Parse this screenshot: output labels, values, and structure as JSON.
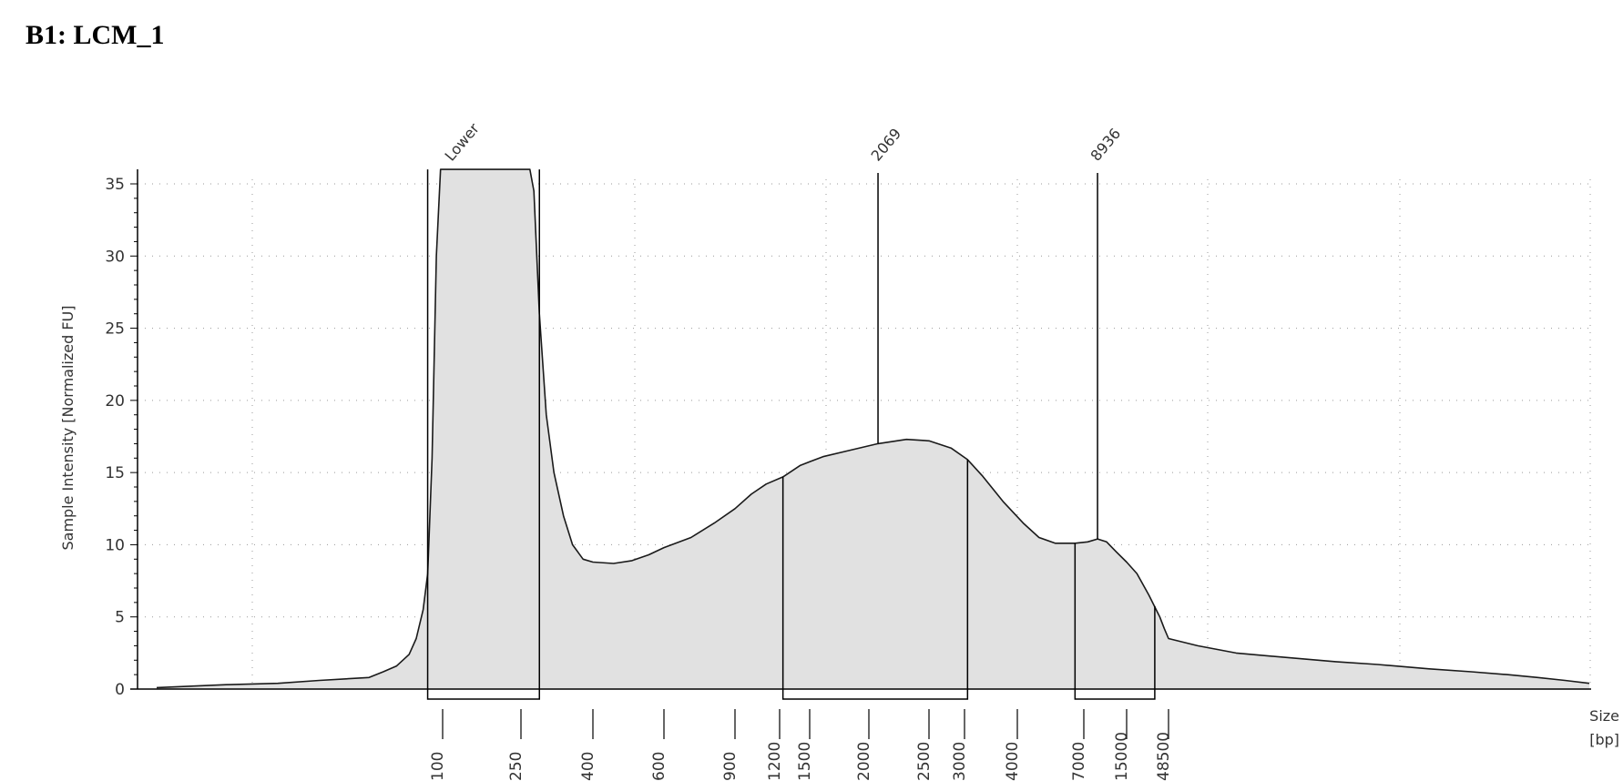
{
  "title": "B1: LCM_1",
  "chart_data": {
    "type": "area",
    "ylabel": "Sample Intensity [Normalized FU]",
    "xlabel": "Size",
    "xlabel_unit": "[bp]",
    "ylim": [
      0,
      36
    ],
    "y_ticks": [
      0,
      5,
      10,
      15,
      20,
      25,
      30,
      35
    ],
    "x_scale": "ladder",
    "ladder_sizes": [
      100,
      250,
      400,
      600,
      900,
      1200,
      1500,
      2000,
      2500,
      3000,
      4000,
      7000,
      15000,
      48500
    ],
    "ladder_labels": [
      "100",
      "250",
      "400",
      "600",
      "900",
      "1200",
      "1500",
      "2000",
      "2500",
      "3000",
      "4000",
      "7000",
      "15000",
      "48500"
    ],
    "grid": true,
    "fill_color": "#e1e1e1",
    "line_color": "#1a1a1a",
    "peaks": [
      {
        "label": "Lower",
        "size": 100
      },
      {
        "label": "2069",
        "size": 2069,
        "value": 17.0
      },
      {
        "label": "8936",
        "size": 8936,
        "value": 10.4
      }
    ],
    "regions": [
      {
        "from": 93,
        "to": 282
      },
      {
        "from": 1230,
        "to": 3050
      },
      {
        "from": 6500,
        "to": 33000
      }
    ],
    "trace": [
      [
        25,
        0.1
      ],
      [
        35,
        0.3
      ],
      [
        45,
        0.4
      ],
      [
        55,
        0.6
      ],
      [
        62,
        0.7
      ],
      [
        70,
        0.8
      ],
      [
        75,
        1.2
      ],
      [
        80,
        1.6
      ],
      [
        85,
        2.4
      ],
      [
        88,
        3.5
      ],
      [
        91,
        5.5
      ],
      [
        93,
        8.0
      ],
      [
        95,
        16.0
      ],
      [
        97,
        30.0
      ],
      [
        99,
        36.5
      ],
      [
        130,
        36.5
      ],
      [
        200,
        36.5
      ],
      [
        265,
        36.5
      ],
      [
        272,
        34.5
      ],
      [
        282,
        26.0
      ],
      [
        295,
        19.0
      ],
      [
        310,
        15.0
      ],
      [
        330,
        12.0
      ],
      [
        350,
        10.0
      ],
      [
        375,
        9.0
      ],
      [
        400,
        8.8
      ],
      [
        450,
        8.7
      ],
      [
        500,
        8.9
      ],
      [
        550,
        9.3
      ],
      [
        600,
        9.8
      ],
      [
        700,
        10.5
      ],
      [
        800,
        11.5
      ],
      [
        900,
        12.5
      ],
      [
        1000,
        13.5
      ],
      [
        1100,
        14.2
      ],
      [
        1230,
        14.7
      ],
      [
        1400,
        15.5
      ],
      [
        1600,
        16.1
      ],
      [
        1800,
        16.5
      ],
      [
        2069,
        17.0
      ],
      [
        2300,
        17.3
      ],
      [
        2500,
        17.2
      ],
      [
        2800,
        16.7
      ],
      [
        3050,
        15.9
      ],
      [
        3300,
        14.8
      ],
      [
        3700,
        13.0
      ],
      [
        4200,
        11.5
      ],
      [
        4800,
        10.5
      ],
      [
        5500,
        10.1
      ],
      [
        6500,
        10.1
      ],
      [
        7500,
        10.2
      ],
      [
        8936,
        10.4
      ],
      [
        10500,
        10.2
      ],
      [
        12500,
        9.5
      ],
      [
        15000,
        8.8
      ],
      [
        20000,
        8.0
      ],
      [
        28000,
        6.5
      ],
      [
        38000,
        5.0
      ],
      [
        43000,
        4.2
      ],
      [
        48500,
        3.5
      ],
      [
        55000,
        3.0
      ],
      [
        65000,
        2.5
      ],
      [
        80000,
        2.2
      ],
      [
        100000,
        1.9
      ],
      [
        120000,
        1.7
      ],
      [
        150000,
        1.4
      ],
      [
        180000,
        1.2
      ],
      [
        210000,
        1.0
      ],
      [
        240000,
        0.8
      ],
      [
        270000,
        0.6
      ],
      [
        300000,
        0.4
      ]
    ]
  }
}
